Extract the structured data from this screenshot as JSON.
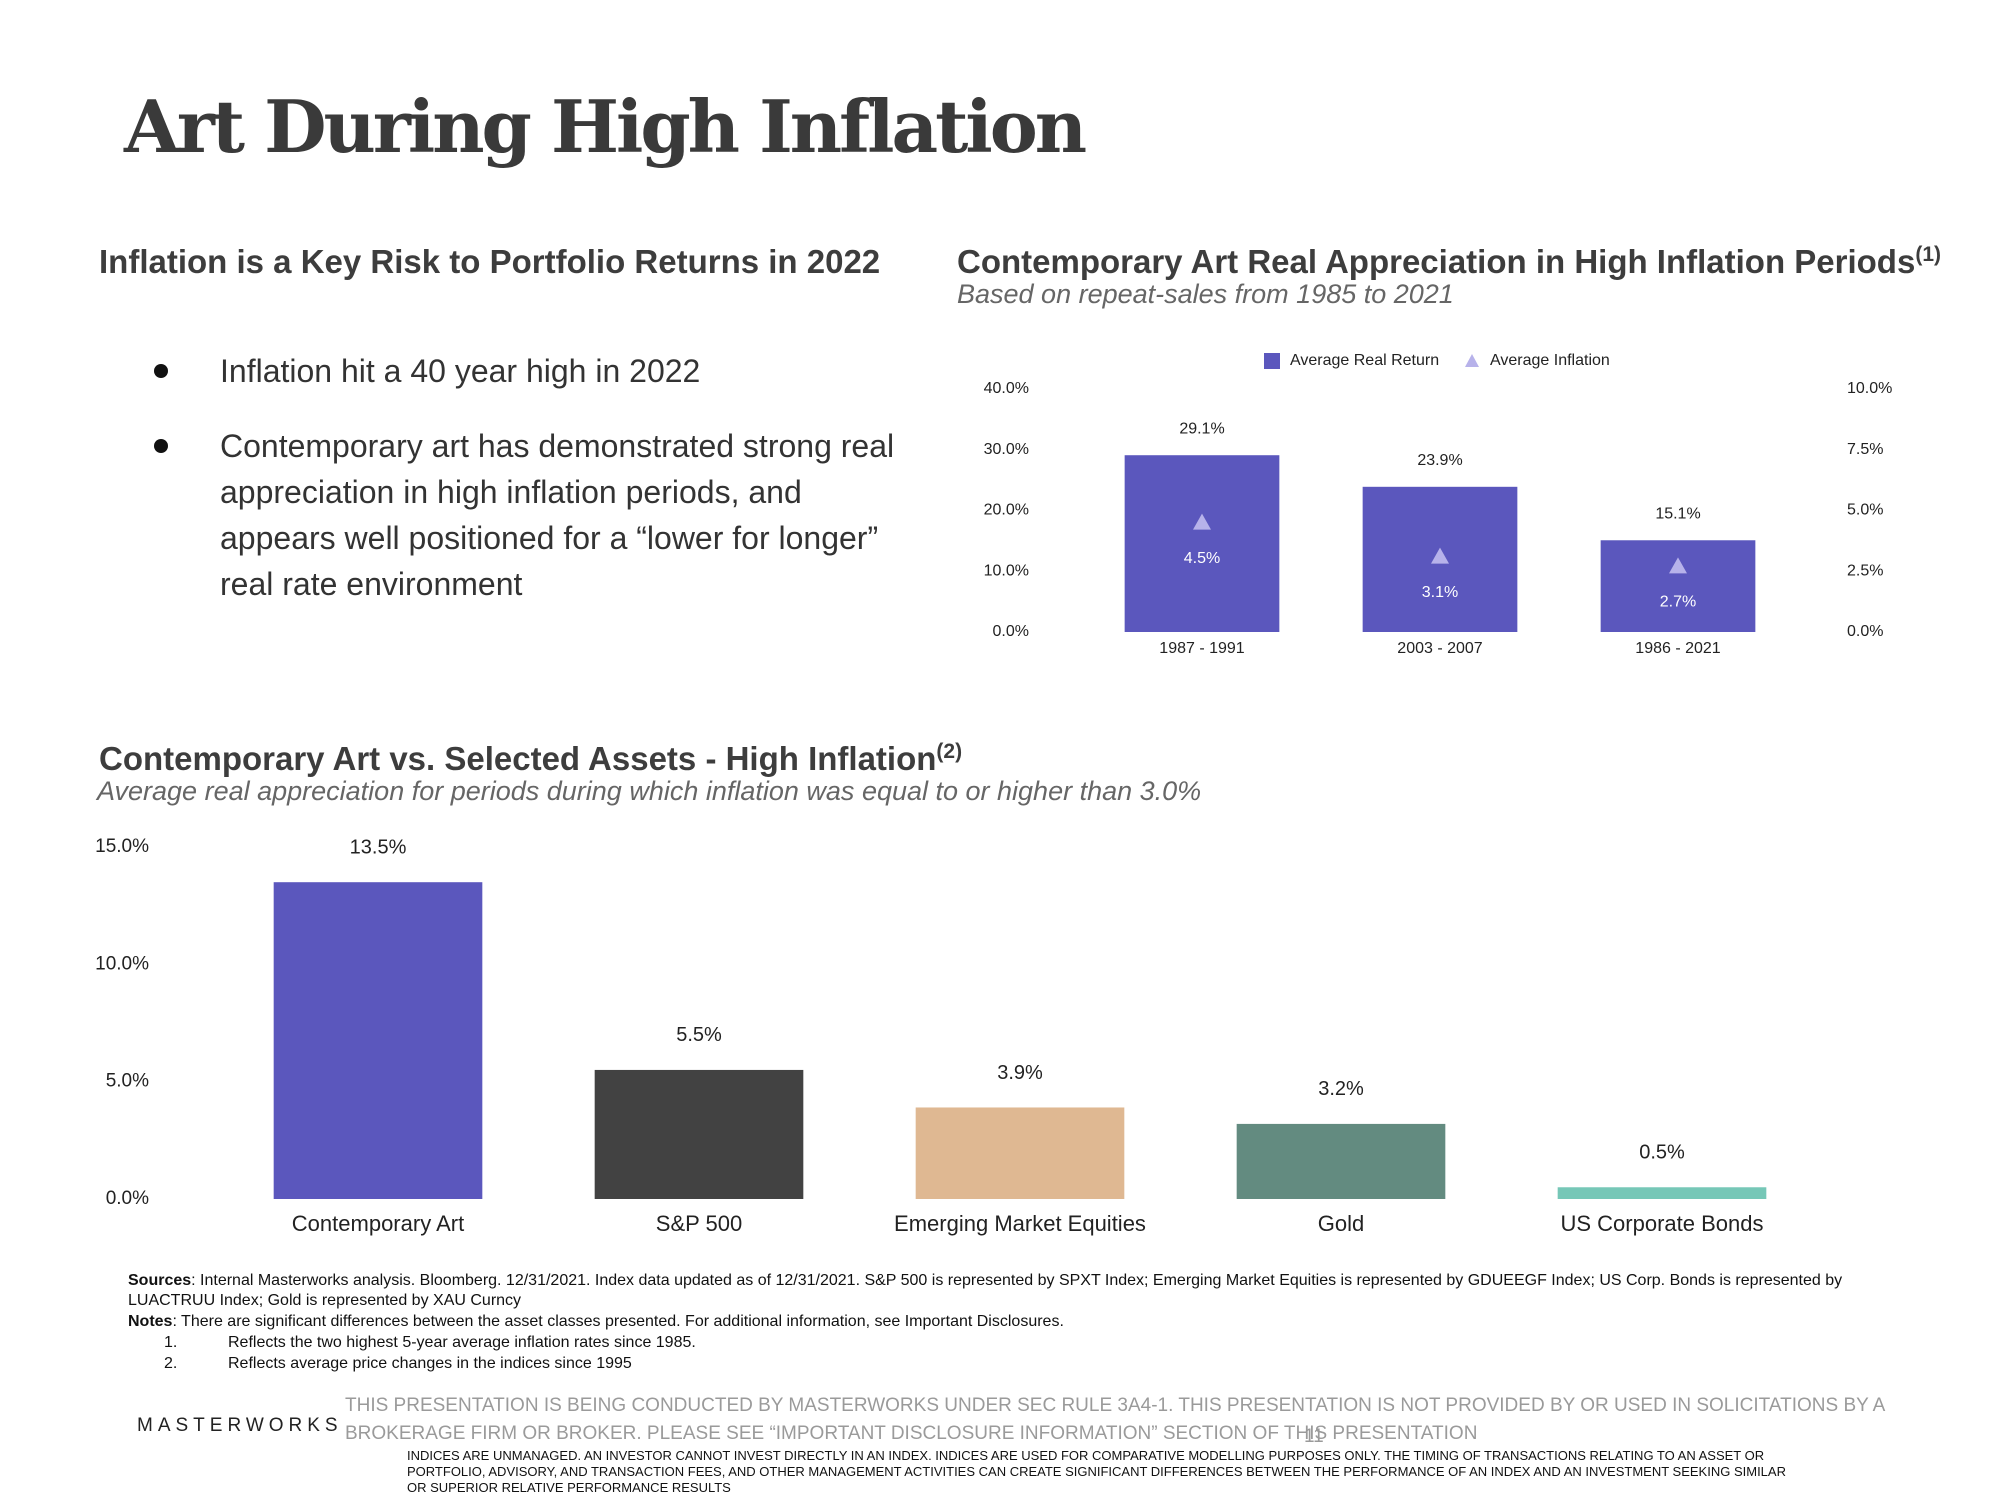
{
  "title": "Art During High Inflation",
  "left_panel": {
    "heading": "Inflation is a Key Risk to Portfolio Returns in 2022",
    "bullets": [
      "Inflation hit a 40 year high in 2022",
      "Contemporary art has demonstrated strong real appreciation in high inflation periods, and appears well positioned for a “lower for longer” real rate environment"
    ]
  },
  "chart_data": [
    {
      "type": "bar",
      "title": "Contemporary Art Real Appreciation in High Inflation Periods",
      "title_superscript": "(1)",
      "subtitle": "Based on repeat-sales from 1985 to 2021",
      "categories": [
        "1987 - 1991",
        "2003 - 2007",
        "1986 - 2021"
      ],
      "series": [
        {
          "name": "Average Real Return",
          "color": "#5b57bd",
          "marker": "bar",
          "values": [
            29.1,
            23.9,
            15.1
          ],
          "value_labels": [
            "29.1%",
            "23.9%",
            "15.1%"
          ]
        },
        {
          "name": "Average Inflation",
          "color": "#b7b2ea",
          "marker": "triangle",
          "axis": "y2",
          "values": [
            4.5,
            3.1,
            2.7
          ],
          "value_labels": [
            "4.5%",
            "3.1%",
            "2.7%"
          ]
        }
      ],
      "ylim": [
        0,
        40
      ],
      "yticks": [
        {
          "value": 0,
          "label": "0.0%"
        },
        {
          "value": 10,
          "label": "10.0%"
        },
        {
          "value": 20,
          "label": "20.0%"
        },
        {
          "value": 30,
          "label": "30.0%"
        },
        {
          "value": 40,
          "label": "40.0%"
        }
      ],
      "y2lim": [
        0,
        10
      ],
      "y2ticks": [
        {
          "value": 0,
          "label": "0.0%"
        },
        {
          "value": 2.5,
          "label": "2.5%"
        },
        {
          "value": 5,
          "label": "5.0%"
        },
        {
          "value": 7.5,
          "label": "7.5%"
        },
        {
          "value": 10,
          "label": "10.0%"
        }
      ],
      "legend": "top"
    },
    {
      "type": "bar",
      "title": "Contemporary Art vs. Selected Assets - High Inflation",
      "title_superscript": "(2)",
      "subtitle": "Average real appreciation for periods during which inflation was equal to or higher than 3.0%",
      "categories": [
        "Contemporary Art",
        "S&P 500",
        "Emerging Market Equities",
        "Gold",
        "US Corporate Bonds"
      ],
      "values": [
        13.5,
        5.5,
        3.9,
        3.2,
        0.5
      ],
      "value_labels": [
        "13.5%",
        "5.5%",
        "3.9%",
        "3.2%",
        "0.5%"
      ],
      "colors": [
        "#5b57bd",
        "#424242",
        "#dfb892",
        "#638b80",
        "#76c7b7"
      ],
      "ylim": [
        0,
        15
      ],
      "yticks": [
        {
          "value": 0,
          "label": "0.0%"
        },
        {
          "value": 5,
          "label": "5.0%"
        },
        {
          "value": 10,
          "label": "10.0%"
        },
        {
          "value": 15,
          "label": "15.0%"
        }
      ]
    }
  ],
  "sources": {
    "label": "Sources",
    "text": ": Internal Masterworks analysis. Bloomberg. 12/31/2021. Index data updated as of 12/31/2021. S&P 500 is represented by SPXT Index; Emerging Market Equities is represented by GDUEEGF Index; US Corp. Bonds is represented by LUACTRUU Index; Gold is represented by XAU Curncy"
  },
  "notes": {
    "label": "Notes",
    "text": ": There are significant differences between the asset classes presented. For additional information, see Important Disclosures.",
    "items": [
      {
        "number": "1.",
        "text": "Reflects the two highest 5-year average inflation rates since 1985."
      },
      {
        "number": "2.",
        "text": "Reflects average price changes in the indices since 1995"
      }
    ]
  },
  "footer": {
    "logo": "MASTERWORKS",
    "disclaimer": "THIS PRESENTATION  IS BEING CONDUCTED BY MASTERWORKS UNDER SEC RULE 3A4-1. THIS PRESENTATION  IS NOT PROVIDED BY OR USED IN SOLICITATIONS BY A BROKERAGE FIRM OR BROKER. PLEASE SEE “IMPORTANT DISCLOSURE INFORMATION” SECTION OF THIS PRESENTATION",
    "page_number": "11",
    "index_disclaimer": "INDICES ARE UNMANAGED. AN INVESTOR CANNOT INVEST DIRECTLY IN AN INDEX. INDICES ARE USED FOR COMPARATIVE MODELLING PURPOSES ONLY. THE TIMING OF TRANSACTIONS RELATING TO AN ASSET OR PORTFOLIO, ADVISORY, AND TRANSACTION FEES, AND OTHER MANAGEMENT ACTIVITIES CAN CREATE SIGNIFICANT DIFFERENCES BETWEEN THE PERFORMANCE OF AN INDEX AND AN INVESTMENT SEEKING SIMILAR OR SUPERIOR RELATIVE PERFORMANCE RESULTS"
  }
}
